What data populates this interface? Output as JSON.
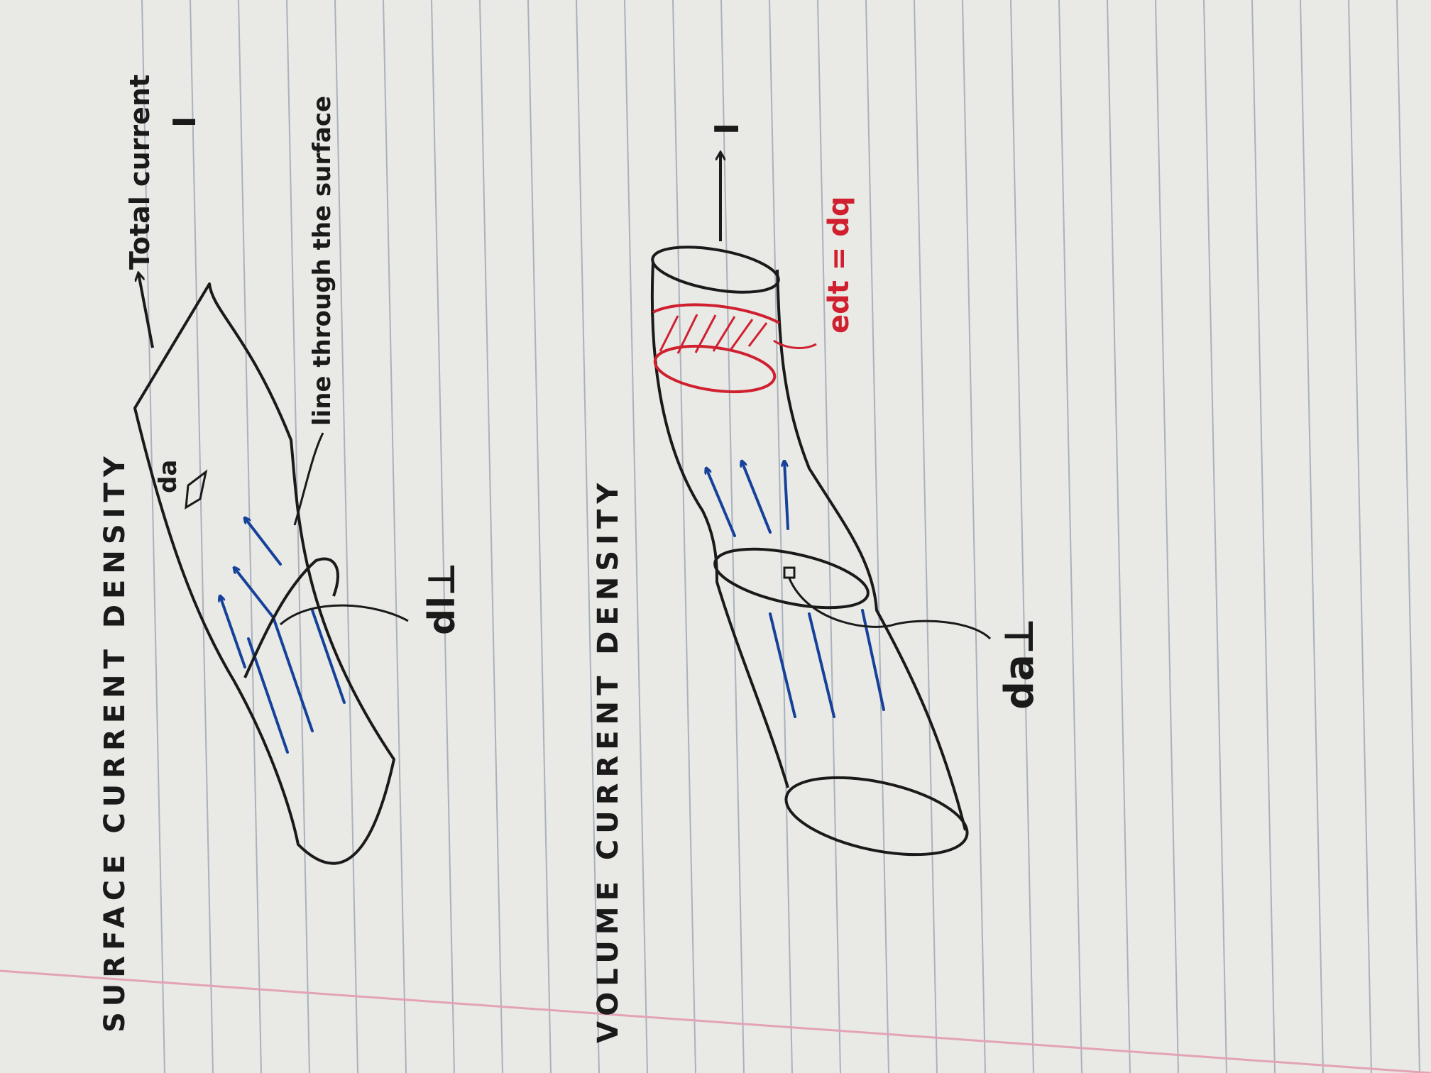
{
  "surface": {
    "title": "SURFACE CURRENT DENSITY",
    "label_total": "Total current",
    "label_I": "I",
    "label_line": "line through the surface",
    "label_da": "da",
    "label_dl": "dl⊥"
  },
  "volume": {
    "title": "VOLUME CURRENT DENSITY",
    "label_I": "I",
    "label_edt": "edt = dq",
    "label_da": "da⊥"
  },
  "colors": {
    "paper": "#e9e9e6",
    "rule": "#a9b2bc",
    "margin": "#e3a3b4",
    "ink": "#1a1a1a",
    "blue": "#16419a",
    "red": "#d0202f"
  }
}
